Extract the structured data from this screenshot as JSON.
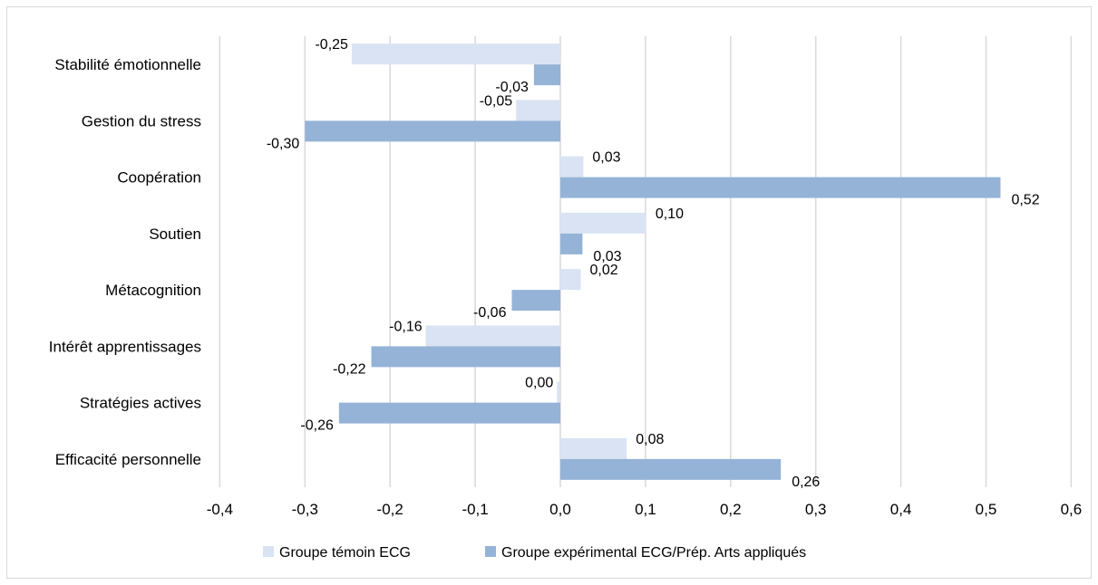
{
  "chart_data": {
    "type": "bar",
    "orientation": "horizontal",
    "categories": [
      "Stabilité émotionnelle",
      "Gestion du stress",
      "Coopération",
      "Soutien",
      "Métacognition",
      "Intérêt apprentissages",
      "Stratégies actives",
      "Efficacité personnelle"
    ],
    "series": [
      {
        "name": "Groupe témoin ECG",
        "color": "#dae3f3",
        "values": [
          -0.245,
          -0.052,
          0.027,
          0.101,
          0.024,
          -0.158,
          -0.004,
          0.078
        ],
        "labels": [
          "-0,25",
          "-0,05",
          "0,03",
          "0,10",
          "0,02",
          "-0,16",
          "0,00",
          "0,08"
        ]
      },
      {
        "name": "Groupe expérimental ECG/Prép. Arts appliqués",
        "color": "#95b3d7",
        "values": [
          -0.031,
          -0.3,
          0.517,
          0.026,
          -0.057,
          -0.222,
          -0.26,
          0.259
        ],
        "labels": [
          "-0,03",
          "-0,30",
          "0,52",
          "0,03",
          "-0,06",
          "-0,22",
          "-0,26",
          "0,26"
        ]
      }
    ],
    "xlim": [
      -0.4,
      0.6
    ],
    "xticks": [
      -0.4,
      -0.3,
      -0.2,
      -0.1,
      0.0,
      0.1,
      0.2,
      0.3,
      0.4,
      0.5,
      0.6
    ],
    "xtick_labels": [
      "-0,4",
      "-0,3",
      "-0,2",
      "-0,1",
      "0,0",
      "0,1",
      "0,2",
      "0,3",
      "0,4",
      "0,5",
      "0,6"
    ],
    "grid": "vertical",
    "legend": "bottom",
    "title": "",
    "xlabel": "",
    "ylabel": ""
  }
}
